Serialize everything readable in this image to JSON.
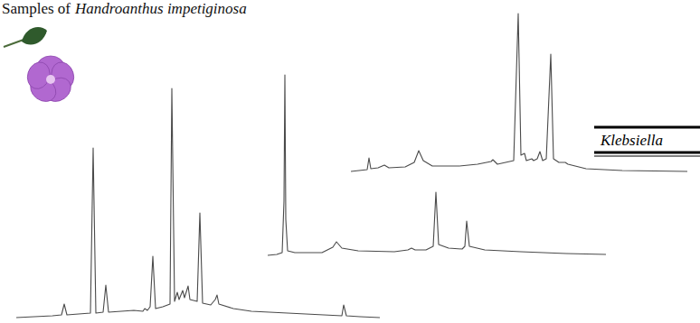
{
  "header": {
    "text": "Samples of",
    "species": "Handroanthus impetiginosa"
  },
  "label": "Klebsiella",
  "chart_data": [
    {
      "type": "line",
      "tick_labels": false,
      "xlim": [
        0,
        402
      ],
      "ylim": [
        0,
        260
      ],
      "x": [
        0,
        20,
        40,
        50,
        53,
        56,
        82,
        85,
        88,
        96,
        99,
        102,
        130,
        140,
        142,
        145,
        148,
        151,
        154,
        162,
        170,
        172,
        175,
        178,
        180,
        184,
        186,
        190,
        192,
        200,
        203,
        206,
        215,
        220,
        222,
        224,
        240,
        260,
        300,
        340,
        360,
        362,
        365,
        380,
        402
      ],
      "values": [
        0,
        1,
        2,
        3,
        15,
        3,
        5,
        188,
        5,
        6,
        36,
        6,
        8,
        7,
        10,
        8,
        12,
        68,
        10,
        12,
        15,
        254,
        18,
        28,
        20,
        30,
        22,
        35,
        20,
        18,
        116,
        16,
        14,
        20,
        25,
        15,
        10,
        7,
        5,
        3,
        2,
        14,
        2,
        1,
        0
      ]
    },
    {
      "type": "line",
      "tick_labels": false,
      "xlim": [
        0,
        374
      ],
      "ylim": [
        0,
        200
      ],
      "x": [
        0,
        10,
        16,
        18,
        19,
        20,
        22,
        30,
        60,
        72,
        76,
        82,
        100,
        140,
        155,
        159,
        163,
        175,
        183,
        186,
        189,
        200,
        215,
        218,
        220,
        223,
        240,
        280,
        330,
        374
      ],
      "values": [
        0,
        1,
        3,
        60,
        200,
        40,
        5,
        3,
        3,
        9,
        15,
        8,
        5,
        4,
        6,
        8,
        6,
        6,
        10,
        70,
        12,
        8,
        7,
        10,
        38,
        10,
        6,
        4,
        2,
        1
      ]
    },
    {
      "type": "line",
      "tick_labels": false,
      "xlim": [
        0,
        372
      ],
      "ylim": [
        0,
        180
      ],
      "x": [
        0,
        18,
        20,
        22,
        30,
        37,
        42,
        60,
        70,
        75,
        80,
        90,
        120,
        140,
        155,
        157,
        162,
        180,
        185,
        188,
        192,
        194,
        200,
        202,
        206,
        209,
        212,
        216,
        221,
        224,
        230,
        237,
        240,
        260,
        300,
        372
      ],
      "values": [
        0,
        2,
        15,
        3,
        4,
        7,
        4,
        5,
        10,
        23,
        12,
        6,
        6,
        8,
        11,
        13,
        8,
        12,
        175,
        18,
        20,
        12,
        14,
        12,
        14,
        22,
        12,
        14,
        130,
        14,
        10,
        10,
        8,
        3,
        1,
        0
      ]
    }
  ]
}
